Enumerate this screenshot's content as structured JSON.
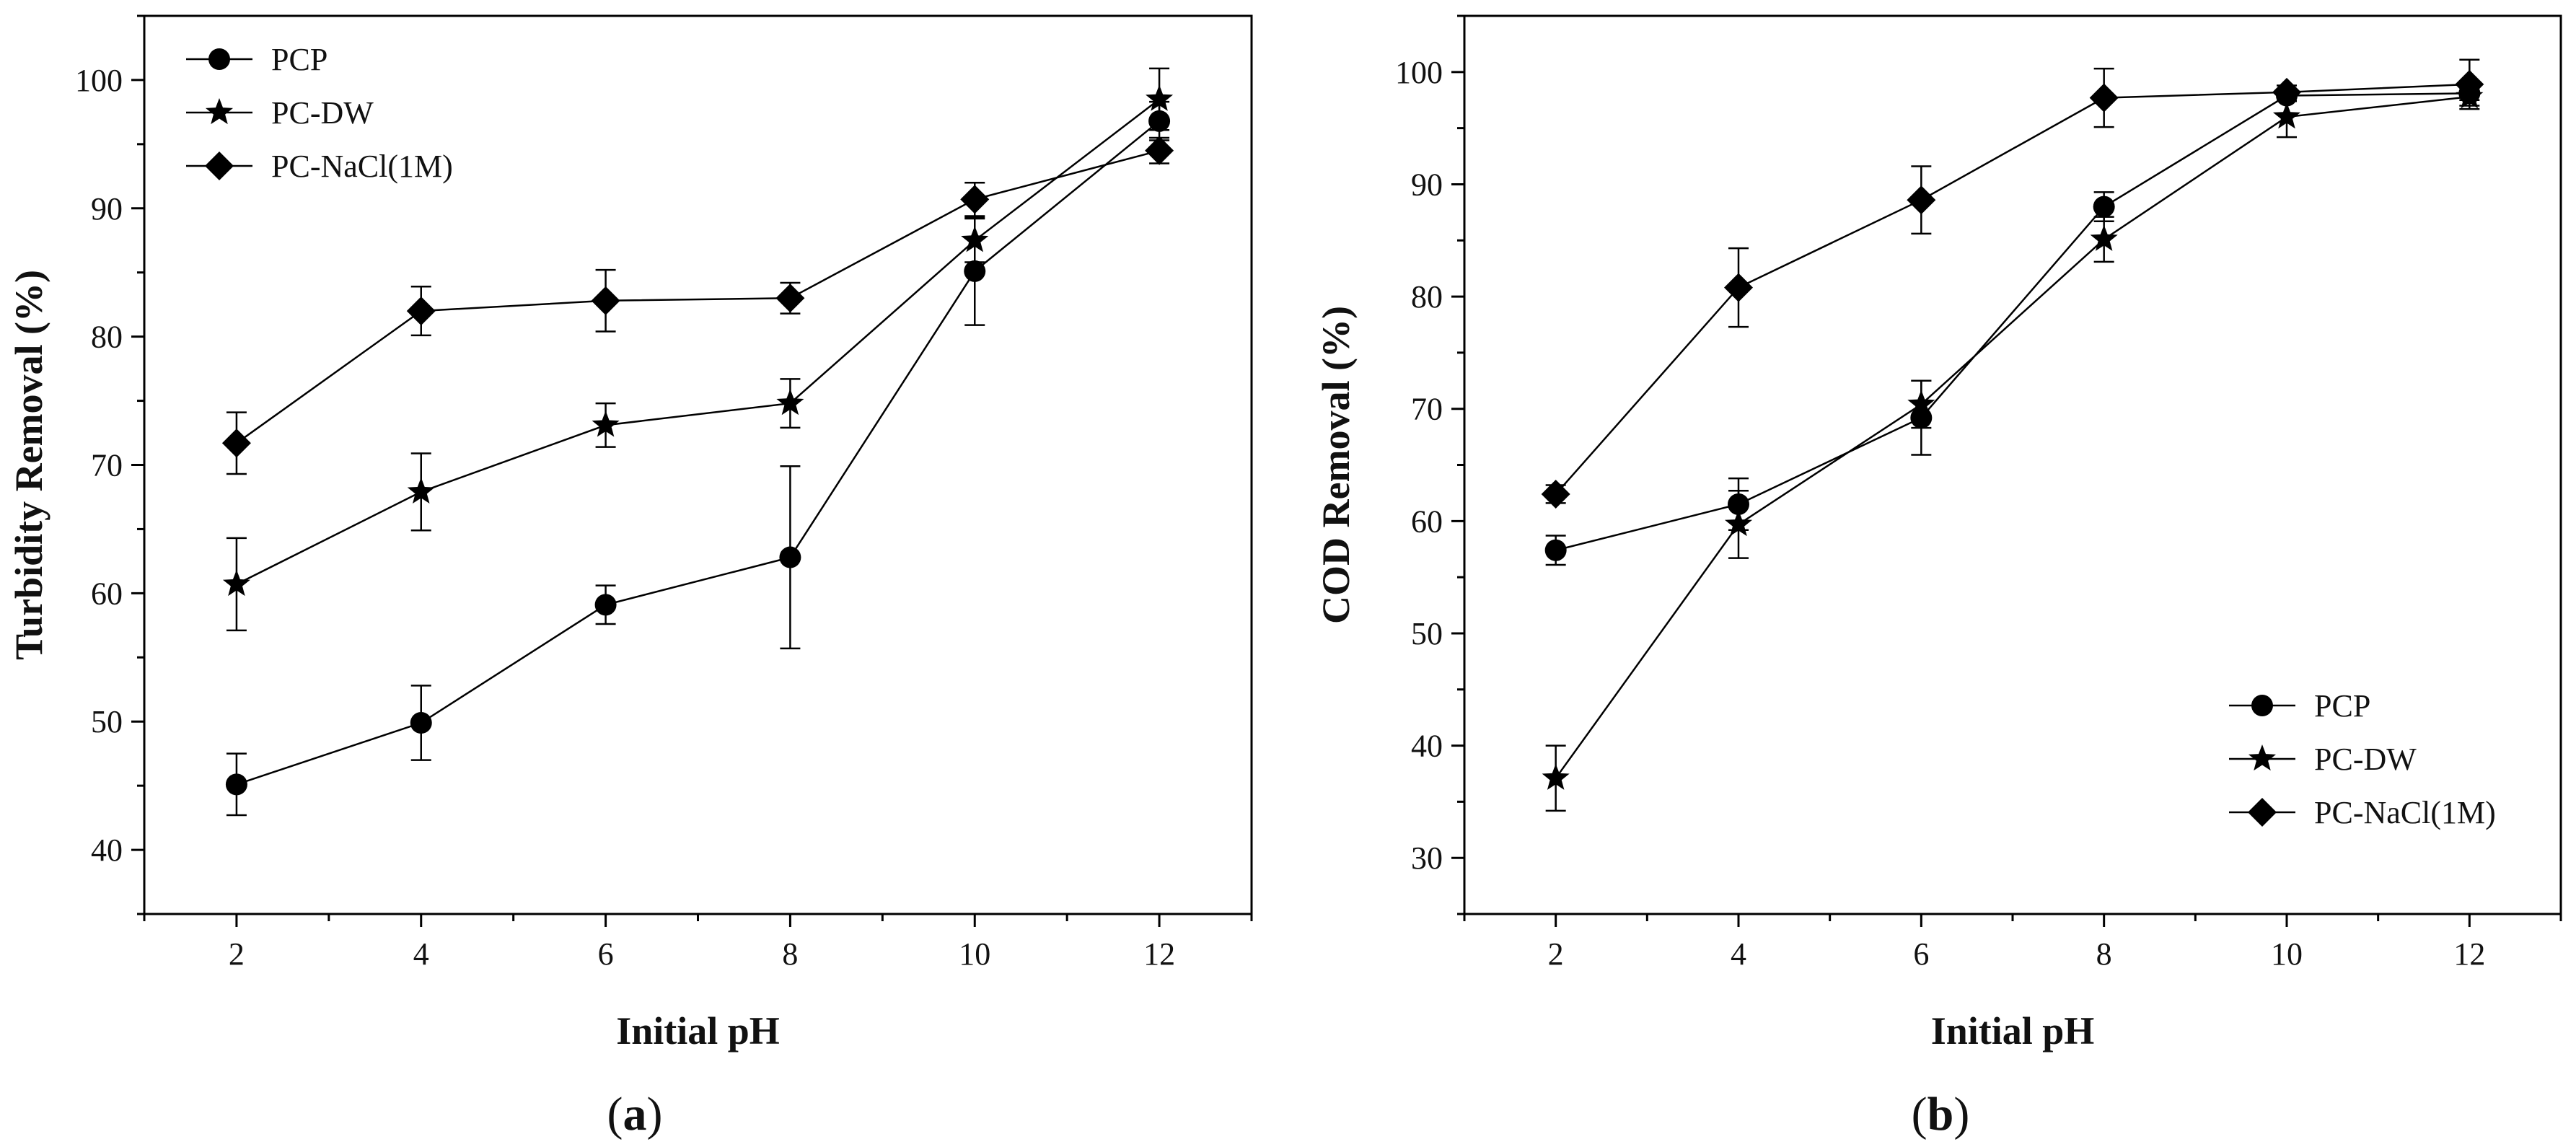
{
  "chart_data": [
    {
      "type": "line",
      "panel_label": "a",
      "title": "",
      "xlabel": "Initial pH",
      "ylabel": "Turbidity Removal (%)",
      "xlim": [
        1,
        13
      ],
      "ylim": [
        35,
        105
      ],
      "x_ticks": [
        2,
        4,
        6,
        8,
        10,
        12
      ],
      "y_ticks": [
        40,
        50,
        60,
        70,
        80,
        90,
        100
      ],
      "grid": false,
      "legend_position": "top-left",
      "x": [
        2,
        4,
        6,
        8,
        10,
        12
      ],
      "series": [
        {
          "name": "PCP",
          "marker": "circle",
          "values": [
            45.1,
            49.9,
            59.1,
            62.8,
            85.1,
            96.8
          ],
          "errors": [
            2.4,
            2.9,
            1.5,
            7.1,
            4.2,
            1.5
          ]
        },
        {
          "name": "PC-DW",
          "marker": "star",
          "values": [
            60.7,
            67.9,
            73.1,
            74.8,
            87.5,
            98.5
          ],
          "errors": [
            3.6,
            3.0,
            1.7,
            1.9,
            1.7,
            2.4
          ]
        },
        {
          "name": "PC-NaCl(1M)",
          "marker": "diamond",
          "values": [
            71.7,
            82.0,
            82.8,
            83.0,
            90.7,
            94.5
          ],
          "errors": [
            2.4,
            1.9,
            2.4,
            1.2,
            1.3,
            1.0
          ]
        }
      ]
    },
    {
      "type": "line",
      "panel_label": "b",
      "title": "",
      "xlabel": "Initial pH",
      "ylabel": "COD Removal (%)",
      "xlim": [
        1,
        13
      ],
      "ylim": [
        25,
        105
      ],
      "x_ticks": [
        2,
        4,
        6,
        8,
        10,
        12
      ],
      "y_ticks": [
        30,
        40,
        50,
        60,
        70,
        80,
        90,
        100
      ],
      "grid": false,
      "legend_position": "bottom-right",
      "x": [
        2,
        4,
        6,
        8,
        10,
        12
      ],
      "series": [
        {
          "name": "PCP",
          "marker": "circle",
          "values": [
            57.4,
            61.5,
            69.2,
            88.0,
            97.9,
            98.1
          ],
          "errors": [
            1.3,
            2.3,
            3.3,
            1.3,
            0.5,
            0.6
          ]
        },
        {
          "name": "PC-DW",
          "marker": "star",
          "values": [
            37.1,
            59.7,
            70.4,
            85.1,
            96.0,
            97.8
          ],
          "errors": [
            2.9,
            3.0,
            2.1,
            2.0,
            1.8,
            0.8
          ]
        },
        {
          "name": "PC-NaCl(1M)",
          "marker": "diamond",
          "values": [
            62.4,
            80.8,
            88.6,
            97.7,
            98.2,
            98.9
          ],
          "errors": [
            0.8,
            3.5,
            3.0,
            2.6,
            0.6,
            2.2
          ]
        }
      ]
    }
  ]
}
